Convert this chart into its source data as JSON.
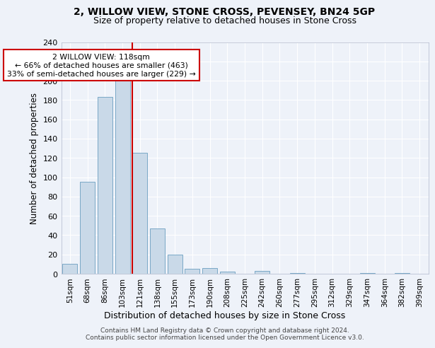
{
  "title1": "2, WILLOW VIEW, STONE CROSS, PEVENSEY, BN24 5GP",
  "title2": "Size of property relative to detached houses in Stone Cross",
  "xlabel": "Distribution of detached houses by size in Stone Cross",
  "ylabel": "Number of detached properties",
  "categories": [
    "51sqm",
    "68sqm",
    "86sqm",
    "103sqm",
    "121sqm",
    "138sqm",
    "155sqm",
    "173sqm",
    "190sqm",
    "208sqm",
    "225sqm",
    "242sqm",
    "260sqm",
    "277sqm",
    "295sqm",
    "312sqm",
    "329sqm",
    "347sqm",
    "364sqm",
    "382sqm",
    "399sqm"
  ],
  "values": [
    10,
    95,
    183,
    200,
    125,
    47,
    20,
    5,
    6,
    2,
    0,
    3,
    0,
    1,
    0,
    0,
    0,
    1,
    0,
    1,
    0
  ],
  "bar_color": "#c9d9e8",
  "bar_edge_color": "#6a9ec0",
  "vline_color": "#cc0000",
  "vline_xcat": 4,
  "annotation_text": "2 WILLOW VIEW: 118sqm\n← 66% of detached houses are smaller (463)\n33% of semi-detached houses are larger (229) →",
  "annotation_box_color": "#ffffff",
  "annotation_box_edge": "#cc0000",
  "ylim": [
    0,
    240
  ],
  "yticks": [
    0,
    20,
    40,
    60,
    80,
    100,
    120,
    140,
    160,
    180,
    200,
    220,
    240
  ],
  "footer1": "Contains HM Land Registry data © Crown copyright and database right 2024.",
  "footer2": "Contains public sector information licensed under the Open Government Licence v3.0.",
  "bg_color": "#eef2f9",
  "plot_bg_color": "#eef2f9",
  "title1_fontsize": 10,
  "title2_fontsize": 9
}
